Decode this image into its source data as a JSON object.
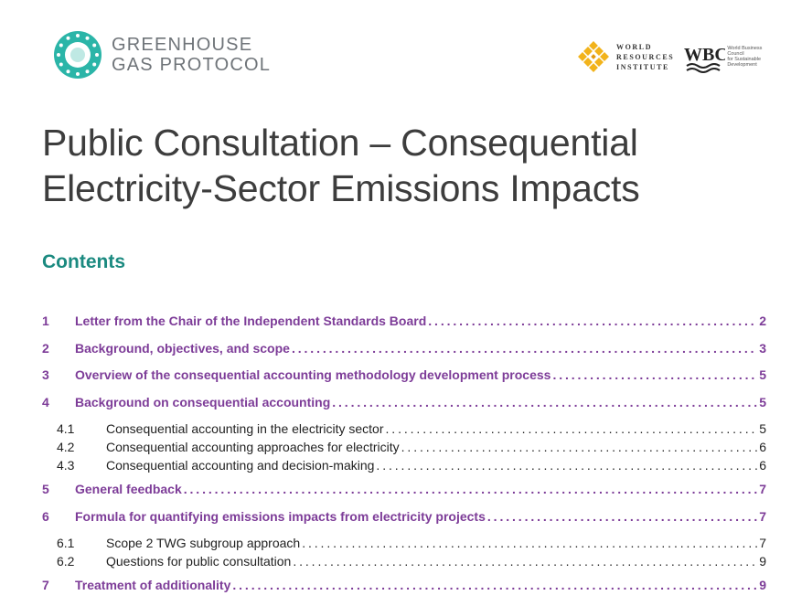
{
  "header": {
    "ghg_logo": {
      "line1": "GREENHOUSE",
      "line2": "GAS PROTOCOL"
    },
    "wri_logo": {
      "line1": "WORLD",
      "line2": "RESOURCES",
      "line3": "INSTITUTE"
    },
    "wbcsd_logo": {
      "mark": "WBC",
      "line1": "World Business",
      "line2": "Council",
      "line3": "for Sustainable",
      "line4": "Development"
    }
  },
  "title": {
    "line1": "Public Consultation – Consequential",
    "line2": "Electricity-Sector Emissions Impacts"
  },
  "contents_heading": "Contents",
  "toc": {
    "e1": {
      "num": "1",
      "label": "Letter from the Chair of the Independent Standards Board",
      "page": "2"
    },
    "e2": {
      "num": "2",
      "label": "Background, objectives, and scope",
      "page": "3"
    },
    "e3": {
      "num": "3",
      "label": "Overview of the consequential accounting methodology development process",
      "page": "5"
    },
    "e4": {
      "num": "4",
      "label": "Background on consequential accounting",
      "page": "5"
    },
    "e41": {
      "num": "4.1",
      "label": "Consequential accounting in the electricity sector",
      "page": "5"
    },
    "e42": {
      "num": "4.2",
      "label": "Consequential accounting approaches for electricity",
      "page": "6"
    },
    "e43": {
      "num": "4.3",
      "label": "Consequential accounting and decision-making",
      "page": "6"
    },
    "e5": {
      "num": "5",
      "label": "General feedback",
      "page": "7"
    },
    "e6": {
      "num": "6",
      "label": "Formula for quantifying emissions impacts from electricity projects",
      "page": "7"
    },
    "e61": {
      "num": "6.1",
      "label": "Scope 2 TWG subgroup approach",
      "page": "7"
    },
    "e62": {
      "num": "6.2",
      "label": "Questions for public consultation",
      "page": "9"
    },
    "e7": {
      "num": "7",
      "label": "Treatment of additionality",
      "page": "9"
    }
  },
  "colors": {
    "heading_teal": "#1b8a80",
    "toc_purple": "#7d3c98",
    "title_gray": "#3d3d3d",
    "logo_teal": "#2bb5a8",
    "wri_gold": "#f2b31b"
  }
}
